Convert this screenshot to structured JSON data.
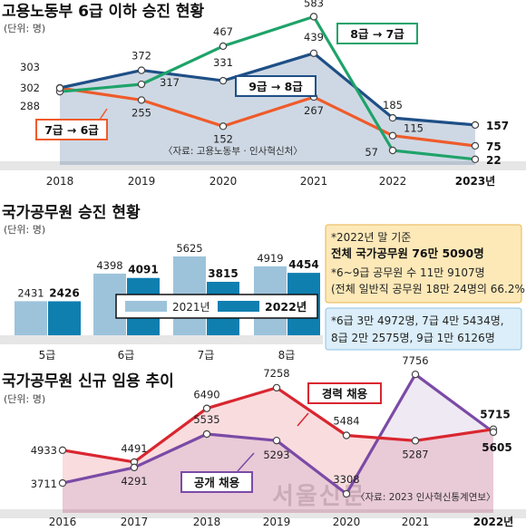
{
  "chart_data": [
    {
      "type": "line",
      "title": "고용노동부 6급 이하 승진 현황",
      "unit": "(단위: 명)",
      "x": [
        "2018",
        "2019",
        "2020",
        "2021",
        "2022",
        "2023년"
      ],
      "series": [
        {
          "name": "9급→8급",
          "label_text": "9급 → 8급",
          "color": "#1e4f86",
          "values": [
            303,
            372,
            331,
            439,
            185,
            157
          ]
        },
        {
          "name": "8급→7급",
          "label_text": "8급 → 7급",
          "color": "#1fa36a",
          "values": [
            288,
            317,
            467,
            583,
            57,
            22
          ]
        },
        {
          "name": "7급→6급",
          "label_text": "7급 → 6급",
          "color": "#ef5b2a",
          "values": [
            302,
            255,
            152,
            267,
            115,
            75
          ]
        }
      ],
      "source": "〈자료: 고용노동부 · 인사혁신처〉",
      "ylim": [
        0,
        620
      ]
    },
    {
      "type": "bar",
      "title": "국가공무원 승진 현황",
      "unit": "(단위: 명)",
      "categories": [
        "5급",
        "6급",
        "7급",
        "8급"
      ],
      "series": [
        {
          "name": "2021년",
          "color": "#9dc3db",
          "values": [
            2431,
            4398,
            5625,
            4919
          ]
        },
        {
          "name": "2022년",
          "color": "#0f7fb0",
          "values": [
            2426,
            4091,
            3815,
            4454
          ]
        }
      ],
      "ylim": [
        0,
        6000
      ],
      "note1": {
        "line1": "*2022년 말 기준",
        "line2": "전체 국가공무원 76만 5090명",
        "line3": "*6~9급 공무원 수 11만 9107명",
        "line4": "(전체 일반직 공무원 18만 24명의 66.2%)"
      },
      "note2": {
        "line1": "*6급 3만 4972명, 7급 4만 5434명,",
        "line2": "8급 2만 2575명, 9급 1만 6126명"
      }
    },
    {
      "type": "line",
      "title": "국가공무원 신규 임용 추이",
      "unit": "(단위: 명)",
      "x": [
        "2016",
        "2017",
        "2018",
        "2019",
        "2020",
        "2021",
        "2022년"
      ],
      "series": [
        {
          "name": "경력 채용",
          "color": "#d9262f",
          "values": [
            4933,
            4491,
            6490,
            7258,
            5484,
            5287,
            5715
          ]
        },
        {
          "name": "공개 채용",
          "color": "#7b4aa6",
          "values": [
            3711,
            4291,
            5535,
            5293,
            3308,
            7756,
            5605
          ]
        }
      ],
      "source": "〈자료: 2023 인사혁신통계연보〉",
      "watermark": "서울신문",
      "ylim": [
        2600,
        8200
      ]
    }
  ]
}
